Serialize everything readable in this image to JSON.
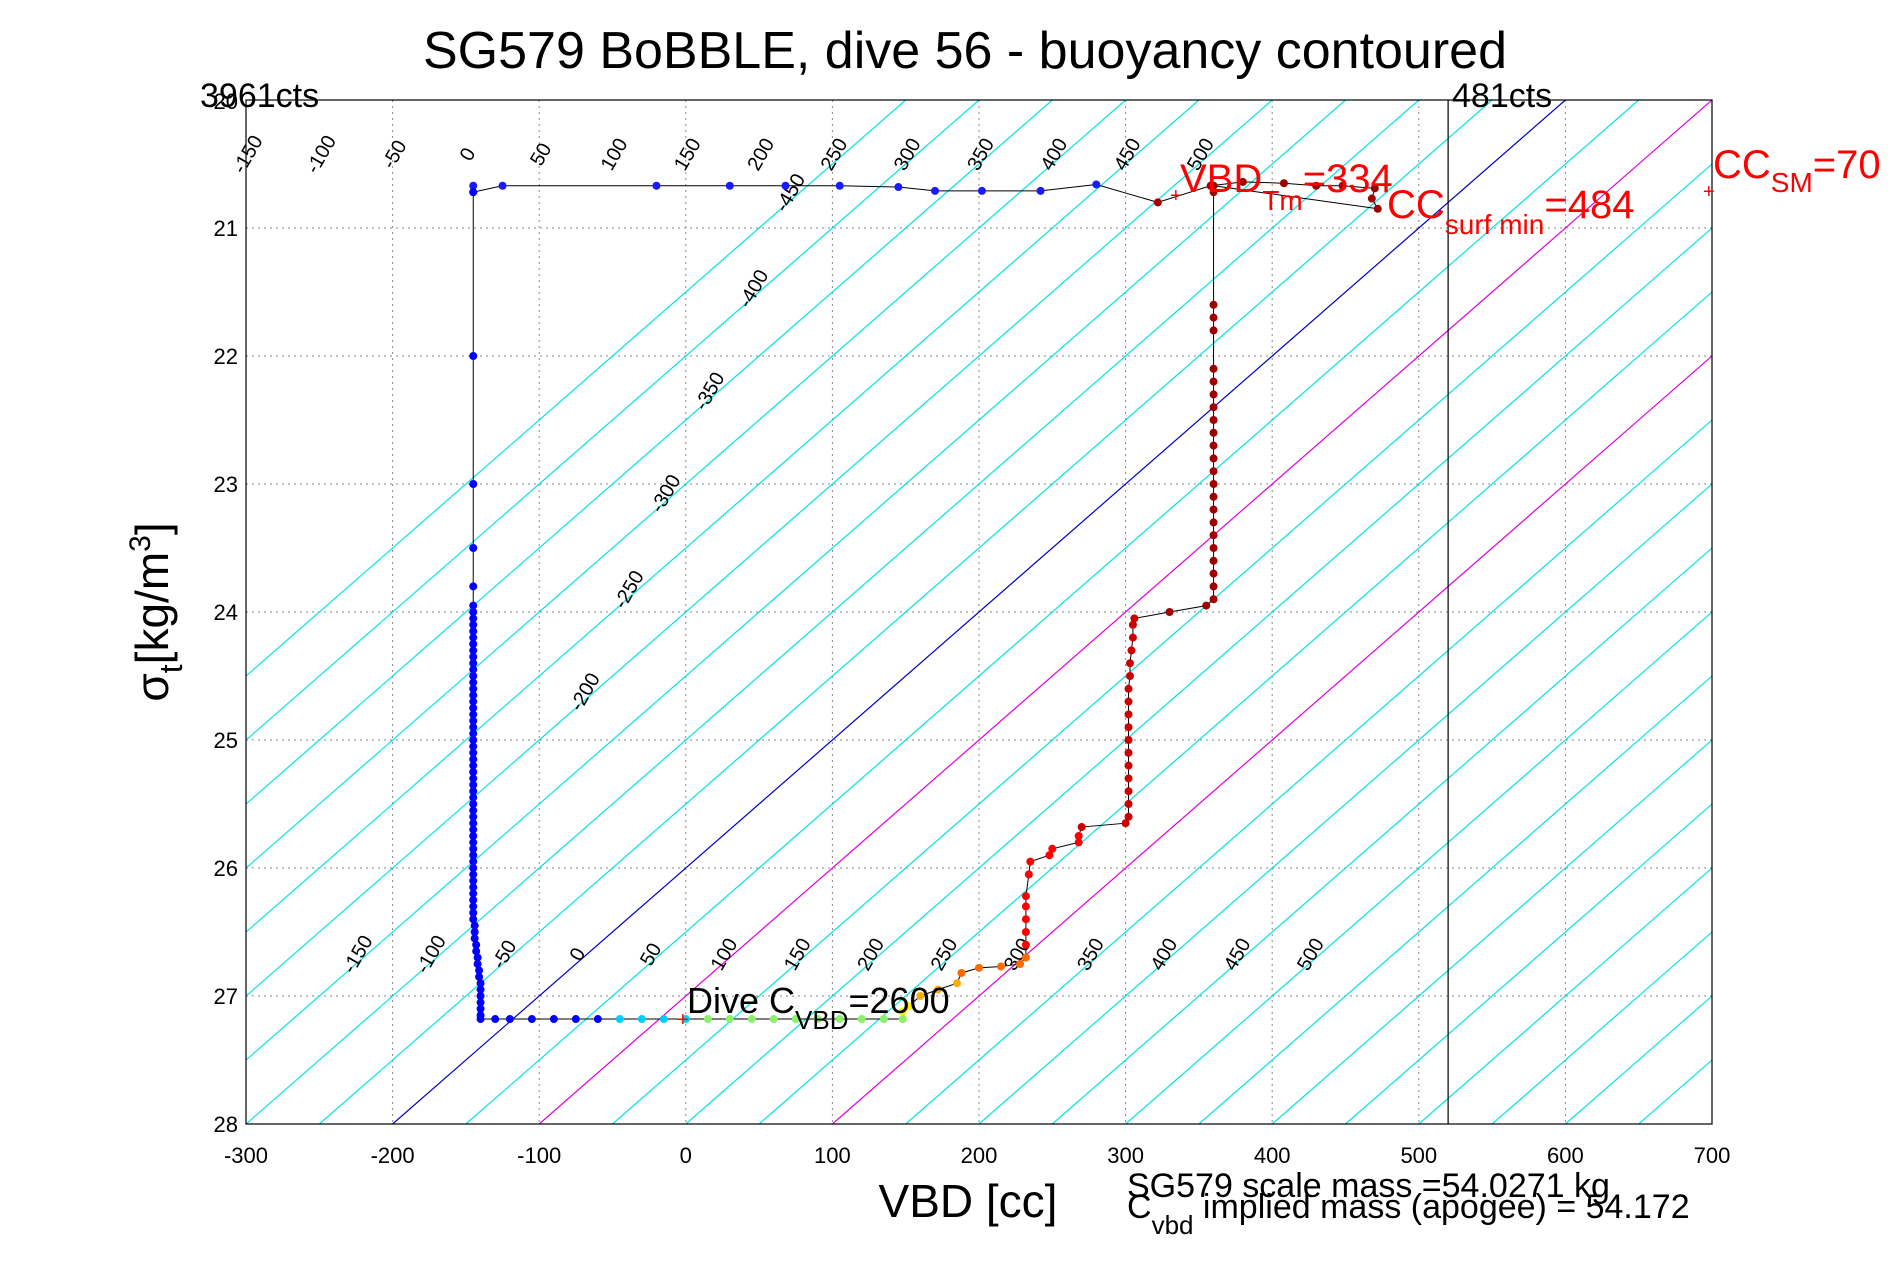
{
  "chart_data": {
    "type": "scatter",
    "title": "SG579 BoBBLE, dive 56 - buoyancy contoured",
    "xlabel": "VBD [cc]",
    "ylabel_main": "σ",
    "ylabel_sub": "t",
    "ylabel_units": "[kg/m",
    "ylabel_sup": "3",
    "ylabel_close": "]",
    "xlim": [
      -300,
      700
    ],
    "ylim": [
      28,
      20
    ],
    "y_reversed": true,
    "x_ticks": [
      -300,
      -200,
      -100,
      0,
      100,
      200,
      300,
      400,
      500,
      600,
      700
    ],
    "y_ticks": [
      21,
      22,
      23,
      24,
      25,
      26,
      27,
      28
    ],
    "x_tick_labels": [
      "-300",
      "-200",
      "-100",
      "0",
      "100",
      "200",
      "300",
      "400",
      "500",
      "600",
      "700"
    ],
    "y_tick_labels": [
      "21",
      "22",
      "23",
      "24",
      "25",
      "26",
      "27",
      "28"
    ],
    "y_top_label": "20",
    "grid": true,
    "contour_lines": {
      "anchor_left": {
        "x0": -200,
        "y0": 28,
        "slope_x_per_sigma": 100
      },
      "offsets": [
        -450,
        -400,
        -350,
        -300,
        -250,
        -200,
        -150,
        -100,
        -50,
        0,
        50,
        100,
        150,
        200,
        250,
        300,
        350,
        400,
        450,
        500,
        550,
        600,
        650,
        700,
        750,
        800,
        850,
        900,
        950
      ],
      "colors": {
        "default": "#00e5e5",
        "zero": "#0000cc",
        "highlight": "#e000e0"
      },
      "highlight_offsets": [
        100,
        300
      ],
      "upper_labels": [
        "-450",
        "-400",
        "-350",
        "-300",
        "-250",
        "-200"
      ],
      "lower_labels": [
        "-150",
        "-100",
        "-50",
        "0",
        "50",
        "100",
        "150",
        "200",
        "250",
        "300",
        "350",
        "400",
        "450",
        "500"
      ],
      "top_labels": [
        "-150",
        "-100",
        "-50",
        "0",
        "50",
        "100",
        "150",
        "200",
        "250",
        "300",
        "350",
        "400",
        "450",
        "500"
      ]
    },
    "series": [
      {
        "points": [
          [
            -145,
            20.67
          ],
          [
            -145,
            20.72
          ],
          [
            -125,
            20.67
          ],
          [
            -20,
            20.67
          ],
          [
            30,
            20.67
          ],
          [
            68,
            20.67
          ],
          [
            105,
            20.67
          ],
          [
            145,
            20.68
          ],
          [
            170,
            20.71
          ],
          [
            202,
            20.71
          ],
          [
            242,
            20.71
          ],
          [
            280,
            20.66
          ],
          [
            322,
            20.8
          ],
          [
            358,
            20.67
          ],
          [
            380,
            20.64
          ],
          [
            408,
            20.65
          ],
          [
            430,
            20.67
          ],
          [
            448,
            20.67
          ],
          [
            470,
            20.69
          ],
          [
            468,
            20.77
          ],
          [
            472,
            20.85
          ],
          [
            360,
            20.67
          ],
          [
            360,
            20.72
          ],
          [
            360,
            21.6
          ],
          [
            360,
            21.7
          ],
          [
            360,
            21.8
          ],
          [
            360,
            22.1
          ],
          [
            360,
            22.2
          ],
          [
            360,
            22.3
          ],
          [
            360,
            22.4
          ],
          [
            360,
            22.5
          ],
          [
            360,
            22.6
          ],
          [
            360,
            22.7
          ],
          [
            360,
            22.8
          ],
          [
            360,
            22.9
          ],
          [
            360,
            23.0
          ],
          [
            360,
            23.1
          ],
          [
            360,
            23.2
          ],
          [
            360,
            23.3
          ],
          [
            360,
            23.4
          ],
          [
            360,
            23.5
          ],
          [
            360,
            23.6
          ],
          [
            360,
            23.7
          ],
          [
            360,
            23.8
          ],
          [
            360,
            23.9
          ],
          [
            355,
            23.95
          ],
          [
            330,
            24.0
          ],
          [
            306,
            24.05
          ],
          [
            305,
            24.1
          ],
          [
            305,
            24.2
          ],
          [
            304,
            24.3
          ],
          [
            303,
            24.4
          ],
          [
            303,
            24.5
          ],
          [
            302,
            24.6
          ],
          [
            302,
            24.7
          ],
          [
            302,
            24.8
          ],
          [
            302,
            24.9
          ],
          [
            302,
            25.0
          ],
          [
            302,
            25.1
          ],
          [
            302,
            25.2
          ],
          [
            302,
            25.3
          ],
          [
            302,
            25.4
          ],
          [
            302,
            25.5
          ],
          [
            302,
            25.6
          ],
          [
            300,
            25.65
          ],
          [
            270,
            25.68
          ],
          [
            268,
            25.75
          ],
          [
            268,
            25.8
          ],
          [
            250,
            25.85
          ],
          [
            248,
            25.9
          ],
          [
            235,
            25.95
          ],
          [
            234,
            26.05
          ],
          [
            232,
            26.22
          ],
          [
            232,
            26.3
          ],
          [
            232,
            26.4
          ],
          [
            232,
            26.5
          ],
          [
            232,
            26.6
          ],
          [
            232,
            26.7
          ],
          [
            228,
            26.75
          ],
          [
            215,
            26.77
          ],
          [
            200,
            26.78
          ],
          [
            188,
            26.82
          ],
          [
            185,
            26.9
          ],
          [
            172,
            26.95
          ],
          [
            160,
            27.0
          ],
          [
            152,
            27.08
          ],
          [
            148,
            27.12
          ],
          [
            148,
            27.18
          ]
        ]
      },
      {
        "points": [
          [
            -145,
            20.72
          ],
          [
            -145,
            22.0
          ],
          [
            -145,
            23.0
          ],
          [
            -145,
            23.5
          ],
          [
            -145,
            23.8
          ],
          [
            -145,
            23.95
          ],
          [
            -145,
            24.0
          ],
          [
            -145,
            24.05
          ],
          [
            -145,
            24.1
          ],
          [
            -145,
            24.15
          ],
          [
            -145,
            24.2
          ],
          [
            -145,
            24.25
          ],
          [
            -145,
            24.3
          ],
          [
            -145,
            24.35
          ],
          [
            -145,
            24.4
          ],
          [
            -145,
            24.45
          ],
          [
            -145,
            24.5
          ],
          [
            -145,
            24.55
          ],
          [
            -145,
            24.6
          ],
          [
            -145,
            24.65
          ],
          [
            -145,
            24.7
          ],
          [
            -145,
            24.75
          ],
          [
            -145,
            24.8
          ],
          [
            -145,
            24.85
          ],
          [
            -145,
            24.9
          ],
          [
            -145,
            24.95
          ],
          [
            -145,
            25.0
          ],
          [
            -145,
            25.05
          ],
          [
            -145,
            25.1
          ],
          [
            -145,
            25.15
          ],
          [
            -145,
            25.2
          ],
          [
            -145,
            25.25
          ],
          [
            -145,
            25.3
          ],
          [
            -145,
            25.35
          ],
          [
            -145,
            25.4
          ],
          [
            -145,
            25.45
          ],
          [
            -145,
            25.5
          ],
          [
            -145,
            25.55
          ],
          [
            -145,
            25.6
          ],
          [
            -145,
            25.65
          ],
          [
            -145,
            25.7
          ],
          [
            -145,
            25.75
          ],
          [
            -145,
            25.8
          ],
          [
            -145,
            25.85
          ],
          [
            -145,
            25.9
          ],
          [
            -145,
            25.95
          ],
          [
            -145,
            26.0
          ],
          [
            -145,
            26.05
          ],
          [
            -145,
            26.1
          ],
          [
            -145,
            26.15
          ],
          [
            -145,
            26.2
          ],
          [
            -145,
            26.25
          ],
          [
            -145,
            26.3
          ],
          [
            -145,
            26.35
          ],
          [
            -145,
            26.4
          ],
          [
            -144,
            26.45
          ],
          [
            -144,
            26.5
          ],
          [
            -144,
            26.55
          ],
          [
            -143,
            26.6
          ],
          [
            -143,
            26.65
          ],
          [
            -142,
            26.7
          ],
          [
            -142,
            26.75
          ],
          [
            -141,
            26.8
          ],
          [
            -141,
            26.85
          ],
          [
            -140,
            26.9
          ],
          [
            -140,
            26.95
          ],
          [
            -140,
            27.0
          ],
          [
            -140,
            27.05
          ],
          [
            -140,
            27.1
          ],
          [
            -140,
            27.15
          ],
          [
            -140,
            27.18
          ],
          [
            -130,
            27.18
          ],
          [
            -120,
            27.18
          ],
          [
            -105,
            27.18
          ],
          [
            -90,
            27.18
          ],
          [
            -75,
            27.18
          ],
          [
            -60,
            27.18
          ],
          [
            -45,
            27.18
          ],
          [
            -30,
            27.18
          ],
          [
            -15,
            27.18
          ],
          [
            0,
            27.18
          ],
          [
            15,
            27.18
          ],
          [
            30,
            27.18
          ],
          [
            45,
            27.18
          ],
          [
            60,
            27.18
          ],
          [
            75,
            27.18
          ],
          [
            90,
            27.18
          ],
          [
            105,
            27.18
          ],
          [
            120,
            27.18
          ],
          [
            135,
            27.18
          ],
          [
            148,
            27.18
          ]
        ]
      }
    ],
    "vertical_line_x": 520,
    "annotations": {
      "left_counts": "3961cts",
      "right_counts": "481cts",
      "dive_c_prefix": "Dive C",
      "dive_c_sub": "VBD",
      "dive_c_value": "=2600",
      "vbd_tm_prefix": "VBD",
      "vbd_tm_sub": "Tm",
      "vbd_tm_value": "=334",
      "cc_surf_prefix": "CC",
      "cc_surf_sub": "surf min",
      "cc_surf_value": "=484",
      "cc_sm_prefix": "CC",
      "cc_sm_sub": "SM",
      "cc_sm_value": "=70",
      "scale_mass": "SG579 scale mass =54.0271 kg",
      "implied_mass_prefix": "C",
      "implied_mass_sub": "vbd",
      "implied_mass_text": " implied mass (apogee) = 54.172"
    },
    "colors": {
      "text_red": "#ff0000",
      "path_line": "#000000",
      "grid": "#888888"
    }
  }
}
